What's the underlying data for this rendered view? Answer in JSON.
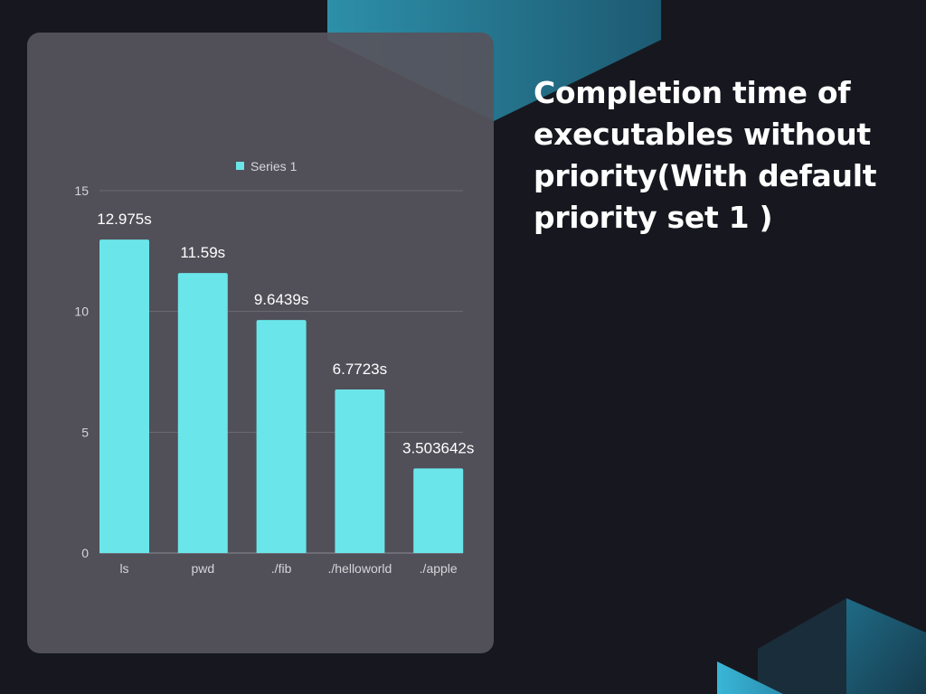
{
  "slide": {
    "title": "Completion time of executables without priority(With default priority set 1 )"
  },
  "colors": {
    "background": "#17181f",
    "card": "#56545c",
    "bar": "#6ae6ea",
    "accent_teal": "#2a8ea8",
    "text_light": "#ffffff"
  },
  "chart_data": {
    "type": "bar",
    "categories": [
      "ls",
      "pwd",
      "./fib",
      "./helloworld",
      "./apple"
    ],
    "series": [
      {
        "name": "Series 1",
        "values": [
          12.975,
          11.59,
          9.6439,
          6.7723,
          3.503642
        ],
        "data_labels": [
          "12.975s",
          "11.59s",
          "9.6439s",
          "6.7723s",
          "3.503642s"
        ]
      }
    ],
    "y_ticks": [
      0,
      5,
      10,
      15
    ],
    "ylim": [
      0,
      15
    ],
    "grid": true,
    "legend_position": "top"
  }
}
